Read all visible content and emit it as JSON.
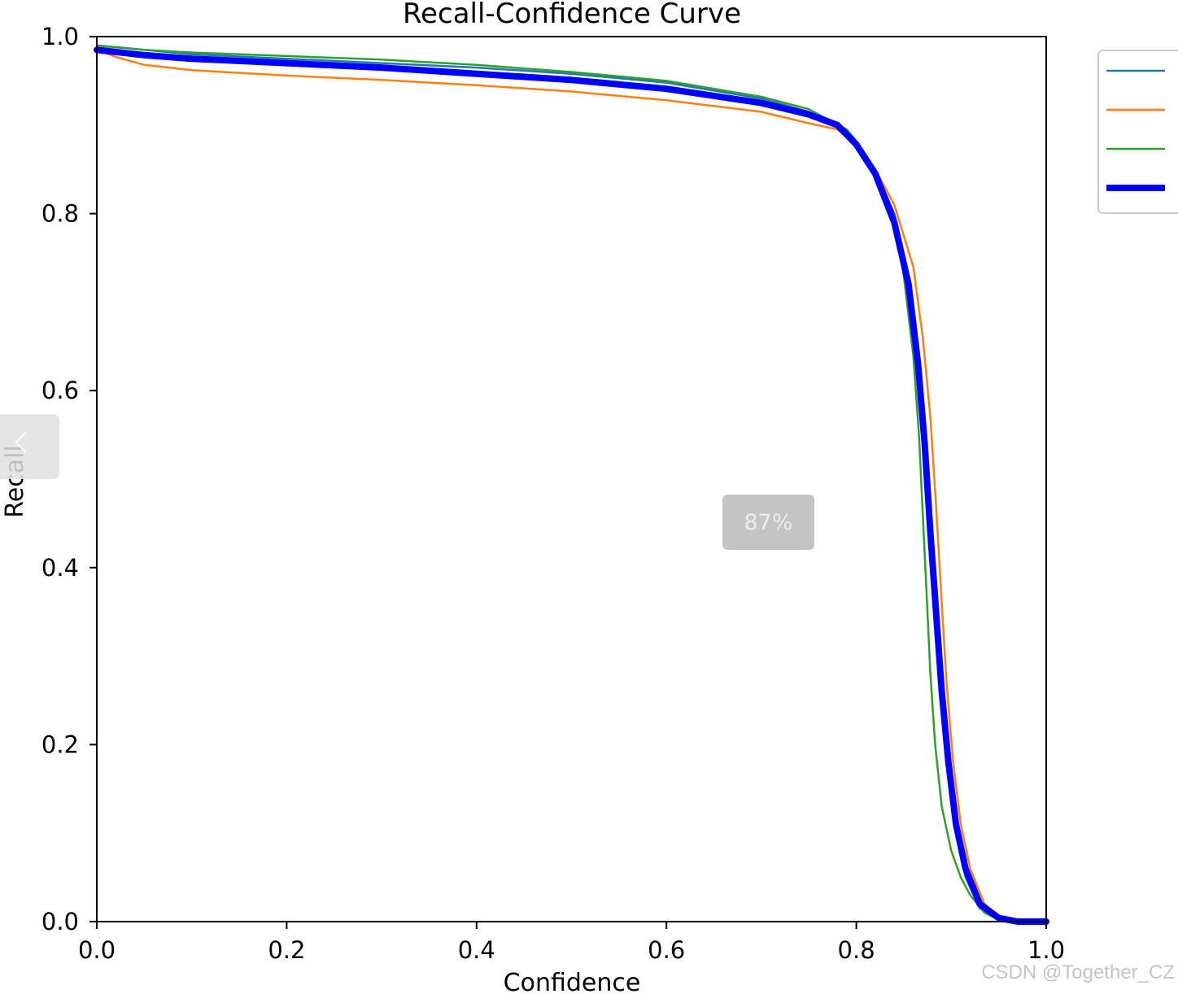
{
  "chart_data": {
    "type": "line",
    "title": "Recall-Confidence Curve",
    "xlabel": "Confidence",
    "ylabel": "Recall",
    "xlim": [
      0,
      1
    ],
    "ylim": [
      0,
      1
    ],
    "xticks": [
      "0.0",
      "0.2",
      "0.4",
      "0.6",
      "0.8",
      "1.0"
    ],
    "yticks": [
      "0.0",
      "0.2",
      "0.4",
      "0.6",
      "0.8",
      "1.0"
    ],
    "grid": false,
    "legend_position": "outside-right",
    "series": [
      {
        "color": "#1f77b4",
        "points": [
          [
            0,
            0.99
          ],
          [
            0.05,
            0.985
          ],
          [
            0.1,
            0.98
          ],
          [
            0.2,
            0.975
          ],
          [
            0.3,
            0.97
          ],
          [
            0.4,
            0.965
          ],
          [
            0.5,
            0.958
          ],
          [
            0.6,
            0.948
          ],
          [
            0.7,
            0.93
          ],
          [
            0.75,
            0.915
          ],
          [
            0.78,
            0.9
          ],
          [
            0.8,
            0.88
          ],
          [
            0.82,
            0.85
          ],
          [
            0.84,
            0.8
          ],
          [
            0.855,
            0.73
          ],
          [
            0.865,
            0.64
          ],
          [
            0.872,
            0.54
          ],
          [
            0.878,
            0.44
          ],
          [
            0.884,
            0.34
          ],
          [
            0.89,
            0.25
          ],
          [
            0.897,
            0.17
          ],
          [
            0.905,
            0.1
          ],
          [
            0.915,
            0.05
          ],
          [
            0.93,
            0.015
          ],
          [
            0.95,
            0.002
          ],
          [
            0.97,
            0
          ],
          [
            1,
            0
          ]
        ]
      },
      {
        "color": "#ff7f0e",
        "points": [
          [
            0,
            0.985
          ],
          [
            0.02,
            0.977
          ],
          [
            0.05,
            0.968
          ],
          [
            0.1,
            0.962
          ],
          [
            0.2,
            0.956
          ],
          [
            0.3,
            0.951
          ],
          [
            0.4,
            0.945
          ],
          [
            0.5,
            0.938
          ],
          [
            0.6,
            0.928
          ],
          [
            0.7,
            0.915
          ],
          [
            0.75,
            0.902
          ],
          [
            0.78,
            0.895
          ],
          [
            0.8,
            0.878
          ],
          [
            0.82,
            0.85
          ],
          [
            0.84,
            0.81
          ],
          [
            0.86,
            0.74
          ],
          [
            0.87,
            0.66
          ],
          [
            0.878,
            0.57
          ],
          [
            0.884,
            0.47
          ],
          [
            0.89,
            0.36
          ],
          [
            0.895,
            0.27
          ],
          [
            0.902,
            0.18
          ],
          [
            0.91,
            0.11
          ],
          [
            0.92,
            0.06
          ],
          [
            0.935,
            0.02
          ],
          [
            0.95,
            0.004
          ],
          [
            0.97,
            0
          ],
          [
            1,
            0
          ]
        ]
      },
      {
        "color": "#2ca02c",
        "points": [
          [
            0,
            0.99
          ],
          [
            0.05,
            0.985
          ],
          [
            0.1,
            0.982
          ],
          [
            0.2,
            0.978
          ],
          [
            0.3,
            0.974
          ],
          [
            0.4,
            0.968
          ],
          [
            0.5,
            0.96
          ],
          [
            0.6,
            0.95
          ],
          [
            0.7,
            0.932
          ],
          [
            0.75,
            0.918
          ],
          [
            0.79,
            0.895
          ],
          [
            0.8,
            0.882
          ],
          [
            0.82,
            0.85
          ],
          [
            0.84,
            0.79
          ],
          [
            0.85,
            0.73
          ],
          [
            0.86,
            0.64
          ],
          [
            0.866,
            0.55
          ],
          [
            0.87,
            0.46
          ],
          [
            0.874,
            0.37
          ],
          [
            0.878,
            0.28
          ],
          [
            0.883,
            0.2
          ],
          [
            0.89,
            0.13
          ],
          [
            0.9,
            0.08
          ],
          [
            0.91,
            0.05
          ],
          [
            0.92,
            0.03
          ],
          [
            0.935,
            0.01
          ],
          [
            0.95,
            0.002
          ],
          [
            0.97,
            0
          ],
          [
            1,
            0
          ]
        ]
      },
      {
        "color": "#0000ff",
        "points": [
          [
            0,
            0.985
          ],
          [
            0.05,
            0.979
          ],
          [
            0.1,
            0.975
          ],
          [
            0.2,
            0.97
          ],
          [
            0.3,
            0.965
          ],
          [
            0.4,
            0.958
          ],
          [
            0.5,
            0.951
          ],
          [
            0.6,
            0.941
          ],
          [
            0.7,
            0.925
          ],
          [
            0.75,
            0.912
          ],
          [
            0.78,
            0.9
          ],
          [
            0.8,
            0.878
          ],
          [
            0.82,
            0.845
          ],
          [
            0.84,
            0.79
          ],
          [
            0.855,
            0.72
          ],
          [
            0.865,
            0.63
          ],
          [
            0.872,
            0.54
          ],
          [
            0.878,
            0.44
          ],
          [
            0.884,
            0.35
          ],
          [
            0.89,
            0.26
          ],
          [
            0.897,
            0.18
          ],
          [
            0.905,
            0.11
          ],
          [
            0.915,
            0.06
          ],
          [
            0.93,
            0.02
          ],
          [
            0.95,
            0.004
          ],
          [
            0.97,
            0
          ],
          [
            1,
            0
          ]
        ]
      }
    ]
  },
  "overlay": {
    "zoom_level": "87%",
    "watermark": "CSDN @Together_CZ"
  }
}
